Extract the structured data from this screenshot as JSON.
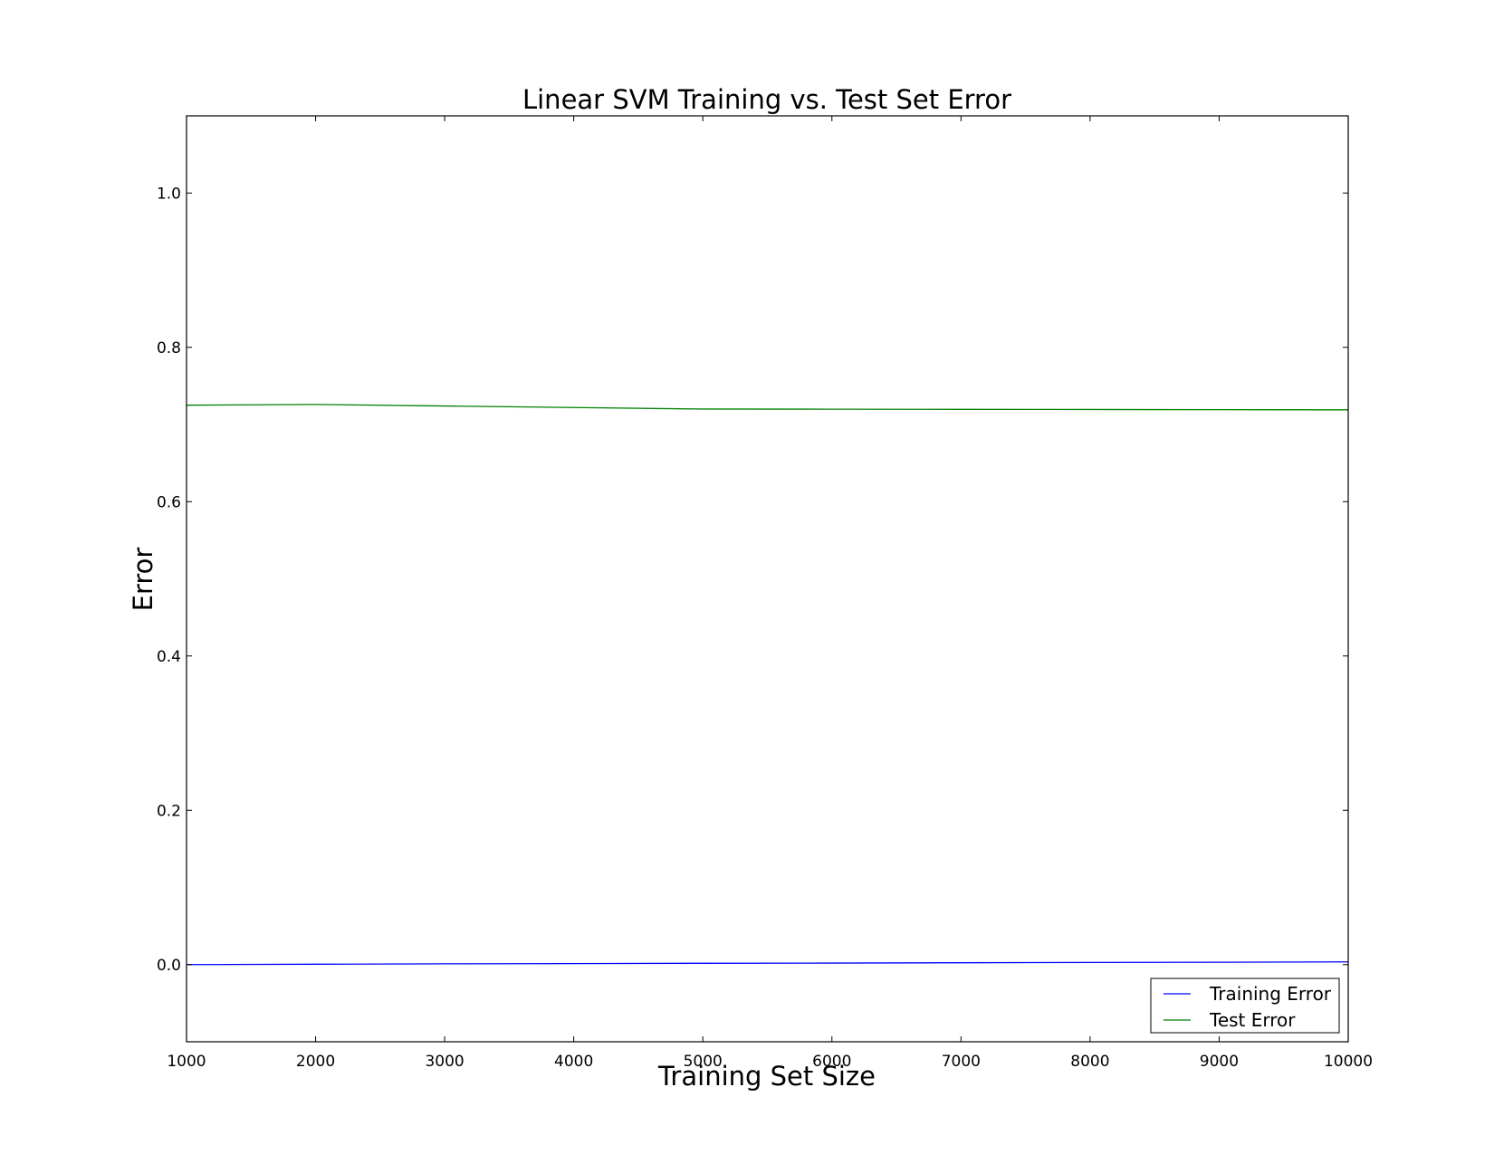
{
  "chart_data": {
    "type": "line",
    "title": "Linear SVM Training vs. Test Set Error",
    "xlabel": "Training Set Size",
    "ylabel": "Error",
    "xlim": [
      1000,
      10000
    ],
    "ylim": [
      -0.1,
      1.1
    ],
    "x_ticks": [
      1000,
      2000,
      3000,
      4000,
      5000,
      6000,
      7000,
      8000,
      9000,
      10000
    ],
    "y_ticks": [
      0.0,
      0.2,
      0.4,
      0.6,
      0.8,
      1.0
    ],
    "x_tick_labels": [
      "1000",
      "2000",
      "3000",
      "4000",
      "5000",
      "6000",
      "7000",
      "8000",
      "9000",
      "10000"
    ],
    "y_tick_labels": [
      "0.0",
      "0.2",
      "0.4",
      "0.6",
      "0.8",
      "1.0"
    ],
    "grid": false,
    "legend_position": "lower-right",
    "x": [
      1000,
      2000,
      3000,
      4000,
      5000,
      6000,
      7000,
      8000,
      9000,
      10000
    ],
    "series": [
      {
        "name": "Training Error",
        "color": "#0000ff",
        "values": [
          0.0,
          0.0005,
          0.001,
          0.0013,
          0.0017,
          0.002,
          0.0024,
          0.0028,
          0.0031,
          0.0035
        ]
      },
      {
        "name": "Test Error",
        "color": "#008000",
        "values": [
          0.725,
          0.726,
          0.724,
          0.722,
          0.72,
          0.7198,
          0.7196,
          0.7194,
          0.7192,
          0.719
        ]
      }
    ]
  }
}
